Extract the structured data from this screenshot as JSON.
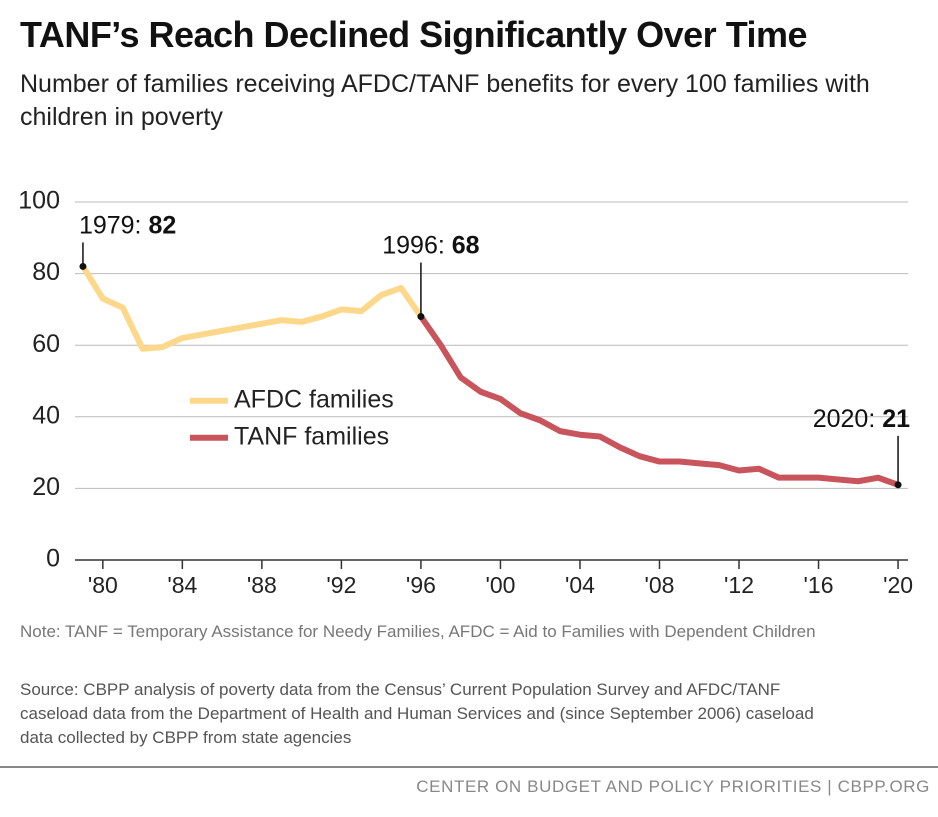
{
  "chart_data": {
    "type": "line",
    "title": "TANF’s Reach Declined Significantly Over Time",
    "subtitle": "Number of families receiving AFDC/TANF benefits for every 100 families with children in poverty",
    "series": [
      {
        "name": "AFDC families",
        "color": "#fdd78a",
        "x": [
          1979,
          1980,
          1981,
          1982,
          1983,
          1984,
          1985,
          1986,
          1987,
          1988,
          1989,
          1990,
          1991,
          1992,
          1993,
          1994,
          1995,
          1996
        ],
        "values": [
          82,
          73,
          70.5,
          59,
          59.5,
          62,
          63,
          64,
          65,
          66,
          67,
          66.5,
          68,
          70,
          69.5,
          74,
          76,
          68
        ]
      },
      {
        "name": "TANF families",
        "color": "#c9555c",
        "x": [
          1996,
          1997,
          1998,
          1999,
          2000,
          2001,
          2002,
          2003,
          2004,
          2005,
          2006,
          2007,
          2008,
          2009,
          2010,
          2011,
          2012,
          2013,
          2014,
          2015,
          2016,
          2017,
          2018,
          2019,
          2020
        ],
        "values": [
          68,
          60,
          51,
          47,
          45,
          41,
          39,
          36,
          35,
          34.5,
          31.5,
          29,
          27.5,
          27.5,
          27,
          26.5,
          25,
          25.5,
          23,
          23,
          23,
          22.5,
          22,
          23,
          21
        ]
      }
    ],
    "annotations": [
      {
        "label": "1979:",
        "x": 1979
      },
      {
        "label": "1996:",
        "x": 1996
      },
      {
        "label": "2020:",
        "x": 2020
      }
    ],
    "xlim": [
      1978.6,
      2020.5
    ],
    "xticks": [
      {
        "value": 1980,
        "label": "'80"
      },
      {
        "value": 1984,
        "label": "'84"
      },
      {
        "value": 1988,
        "label": "'88"
      },
      {
        "value": 1992,
        "label": "'92"
      },
      {
        "value": 1996,
        "label": "'96"
      },
      {
        "value": 2000,
        "label": "'00"
      },
      {
        "value": 2004,
        "label": "'04"
      },
      {
        "value": 2008,
        "label": "'08"
      },
      {
        "value": 2012,
        "label": "'12"
      },
      {
        "value": 2016,
        "label": "'16"
      },
      {
        "value": 2020,
        "label": "'20"
      }
    ],
    "ylim": [
      0,
      100
    ],
    "yticks": [
      0,
      20,
      40,
      60,
      80,
      100
    ],
    "grid": true,
    "legend": "left",
    "note": "Note: TANF = Temporary Assistance for Needy Families, AFDC = Aid to Families with Dependent Children",
    "source": "Source: CBPP analysis of poverty data from the Census’ Current Population Survey and AFDC/TANF caseload data from the Department of Health and Human Services and (since September 2006) caseload data collected by CBPP from state agencies",
    "credit": "CENTER ON BUDGET AND POLICY PRIORITIES | CBPP.ORG"
  }
}
